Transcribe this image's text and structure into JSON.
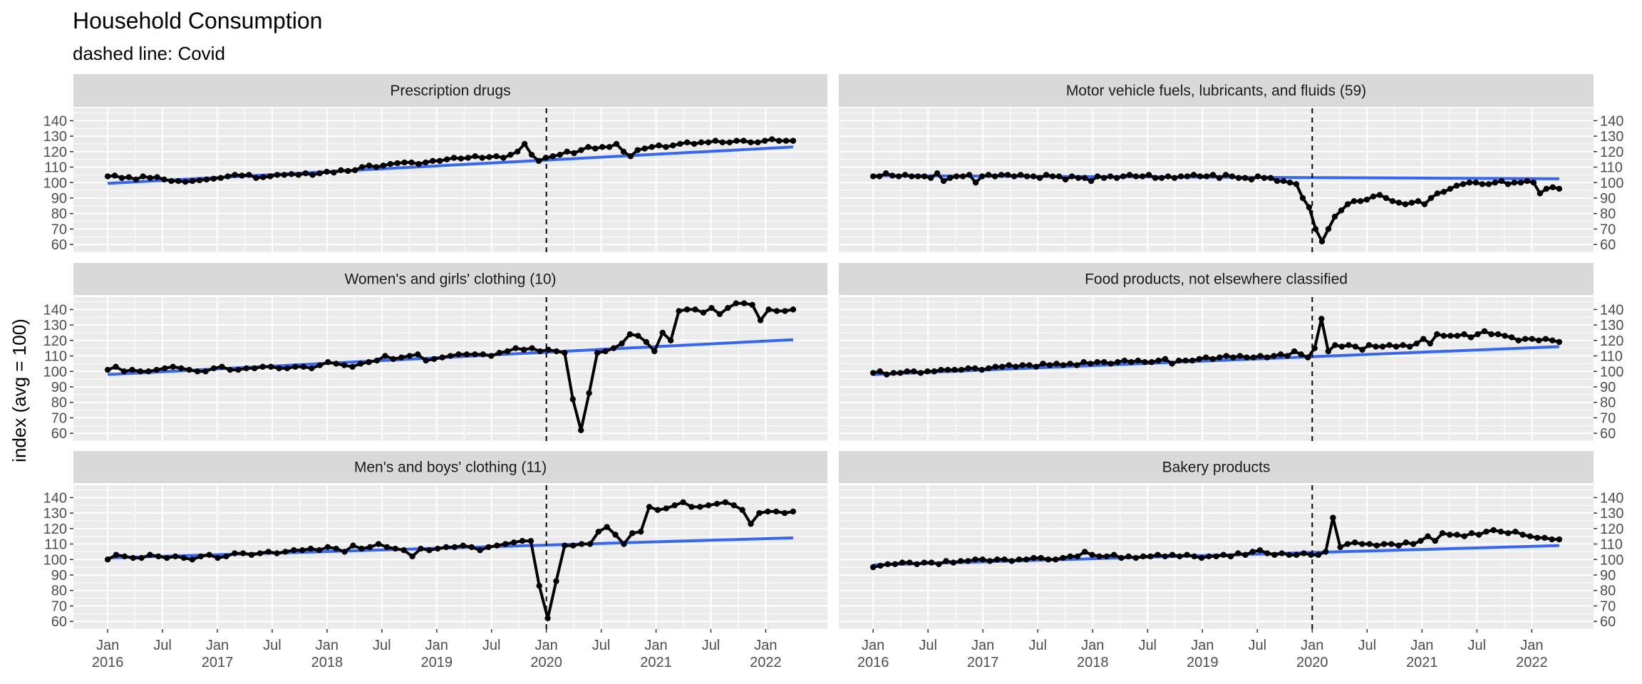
{
  "title": "Household Consumption",
  "subtitle": "dashed line: Covid",
  "chart_data": {
    "type": "line",
    "ylabel": "index (avg = 100)",
    "ylim": [
      55,
      148
    ],
    "yticks": [
      60,
      70,
      80,
      90,
      100,
      110,
      120,
      130,
      140
    ],
    "x_start": "2016-01",
    "x_end": "2022-04",
    "x_tick_labels": [
      {
        "month": "Jan",
        "year": "2016"
      },
      {
        "month": "Jul",
        "year": ""
      },
      {
        "month": "Jan",
        "year": "2017"
      },
      {
        "month": "Jul",
        "year": ""
      },
      {
        "month": "Jan",
        "year": "2018"
      },
      {
        "month": "Jul",
        "year": ""
      },
      {
        "month": "Jan",
        "year": "2019"
      },
      {
        "month": "Jul",
        "year": ""
      },
      {
        "month": "Jan",
        "year": "2020"
      },
      {
        "month": "Jul",
        "year": ""
      },
      {
        "month": "Jan",
        "year": "2021"
      },
      {
        "month": "Jul",
        "year": ""
      },
      {
        "month": "Jan",
        "year": "2022"
      }
    ],
    "covid_line_x": "2020-01",
    "colors": {
      "series": "#000000",
      "trend": "#3366FF",
      "panel_bg": "#EBEBEB",
      "strip_bg": "#D9D9D9",
      "grid": "#FFFFFF"
    },
    "panels": [
      {
        "name": "Prescription drugs",
        "trend": [
          99.5,
          123
        ],
        "values": [
          104,
          104.5,
          103,
          103.5,
          102,
          104,
          103,
          103.5,
          102,
          101,
          101,
          100.5,
          101,
          101.5,
          102,
          102.5,
          103,
          104,
          105,
          104.5,
          105,
          103,
          103.5,
          104,
          105,
          105,
          105.5,
          105,
          106,
          105,
          106,
          107,
          106.5,
          108,
          107.5,
          108,
          110,
          111,
          110,
          111,
          112,
          112.5,
          113,
          113,
          112,
          113,
          114,
          114,
          115,
          116,
          115.5,
          116,
          117,
          116,
          116.5,
          117,
          116,
          118,
          120,
          125,
          118,
          114,
          116,
          117,
          118,
          120,
          119,
          121,
          123,
          122,
          123,
          123,
          125,
          120,
          117,
          121,
          122,
          123,
          124,
          123,
          124,
          125,
          126,
          125,
          126,
          126,
          127,
          126,
          126,
          127,
          127,
          126,
          126,
          127,
          128,
          127,
          127,
          127
        ]
      },
      {
        "name": "Motor vehicle fuels, lubricants, and fluids (59)",
        "trend": [
          104.5,
          102.5
        ],
        "values": [
          104,
          104,
          106,
          104.5,
          104,
          105,
          104,
          104,
          104,
          103,
          106,
          101,
          103,
          104,
          104,
          105,
          100,
          104,
          105,
          104,
          105,
          105,
          104,
          105,
          104,
          104,
          103,
          105,
          104,
          104,
          102,
          104,
          103,
          103,
          101,
          104,
          103,
          104,
          103,
          104,
          105,
          104,
          104,
          105,
          103,
          103,
          104,
          103,
          104,
          104,
          105,
          104,
          104,
          105,
          103,
          105,
          104,
          103,
          103,
          102,
          104,
          103,
          103,
          101,
          101,
          100,
          99,
          90,
          84,
          70,
          62,
          70,
          78,
          82,
          86,
          88,
          88,
          89,
          91,
          92,
          90,
          88,
          87,
          86,
          87,
          88,
          86,
          90,
          93,
          94,
          96,
          98,
          99,
          100,
          100,
          99,
          99,
          100,
          101,
          99,
          100,
          100,
          101,
          100,
          93,
          96,
          97,
          96
        ]
      },
      {
        "name": "Women's and girls' clothing (10)",
        "trend": [
          98,
          120.5
        ],
        "values": [
          101,
          103,
          100,
          101,
          100,
          100,
          101,
          102,
          103,
          102,
          101,
          100,
          100,
          102,
          103,
          101,
          101,
          102,
          102,
          103,
          103,
          102,
          102,
          103,
          103,
          102,
          104,
          106,
          105,
          104,
          103,
          105,
          106,
          107,
          110,
          108,
          109,
          110,
          111,
          107,
          108,
          109,
          110,
          111,
          111,
          111,
          111,
          110,
          112,
          113,
          115,
          114,
          115,
          113,
          114,
          113,
          112,
          82,
          62,
          86,
          112,
          113,
          115,
          118,
          124,
          123,
          119,
          113,
          125,
          120,
          139,
          140,
          140,
          138,
          141,
          137,
          141,
          144,
          144,
          143,
          133,
          140,
          139,
          139,
          140
        ]
      },
      {
        "name": "Food products, not elsewhere classified",
        "trend": [
          98,
          116
        ],
        "values": [
          99,
          100,
          98,
          99,
          99,
          100,
          100,
          99,
          100,
          100,
          101,
          101,
          101,
          101,
          102,
          102,
          101,
          102,
          103,
          103,
          104,
          103,
          104,
          104,
          103,
          105,
          104,
          105,
          104,
          105,
          104,
          106,
          105,
          106,
          106,
          105,
          106,
          107,
          106,
          107,
          106,
          106,
          107,
          108,
          105,
          107,
          107,
          107,
          108,
          109,
          108,
          109,
          110,
          109,
          110,
          109,
          109,
          110,
          109,
          110,
          111,
          110,
          113,
          111,
          109,
          115,
          134,
          113,
          117,
          116,
          117,
          116,
          114,
          117,
          116,
          116,
          117,
          116,
          117,
          116,
          118,
          121,
          118,
          124,
          123,
          123,
          123,
          124,
          122,
          124,
          126,
          124,
          124,
          123,
          122,
          120,
          121,
          121,
          120,
          121,
          120,
          119
        ]
      },
      {
        "name": "Men's and boys' clothing (11)",
        "trend": [
          101,
          114
        ],
        "values": [
          100,
          103,
          102,
          101,
          101,
          103,
          102,
          101,
          102,
          101,
          100,
          102,
          103,
          101,
          102,
          104,
          104,
          103,
          104,
          105,
          104,
          105,
          106,
          106,
          107,
          106,
          108,
          107,
          105,
          109,
          107,
          108,
          110,
          108,
          107,
          106,
          102,
          107,
          106,
          107,
          108,
          108,
          109,
          108,
          106,
          108,
          109,
          110,
          111,
          112,
          112,
          83,
          62,
          86,
          109,
          109,
          110,
          110,
          118,
          121,
          116,
          110,
          117,
          118,
          134,
          132,
          133,
          135,
          137,
          134,
          134,
          135,
          136,
          137,
          135,
          132,
          123,
          130,
          131,
          131,
          130,
          131
        ]
      },
      {
        "name": "Bakery products",
        "trend": [
          96.5,
          109
        ],
        "values": [
          95,
          96,
          97,
          97,
          98,
          98,
          97,
          98,
          98,
          97,
          99,
          98,
          99,
          99,
          100,
          100,
          99,
          100,
          100,
          99,
          100,
          100,
          101,
          101,
          100,
          100,
          101,
          102,
          102,
          105,
          103,
          102,
          102,
          103,
          101,
          102,
          101,
          102,
          102,
          103,
          102,
          103,
          102,
          103,
          102,
          101,
          102,
          102,
          103,
          102,
          104,
          103,
          105,
          106,
          104,
          103,
          104,
          103,
          103,
          104,
          103,
          103,
          105,
          127,
          108,
          110,
          111,
          110,
          110,
          109,
          110,
          110,
          109,
          111,
          110,
          112,
          115,
          112,
          117,
          116,
          116,
          115,
          117,
          116,
          118,
          119,
          118,
          117,
          118,
          116,
          115,
          114,
          114,
          113,
          113
        ]
      }
    ]
  }
}
